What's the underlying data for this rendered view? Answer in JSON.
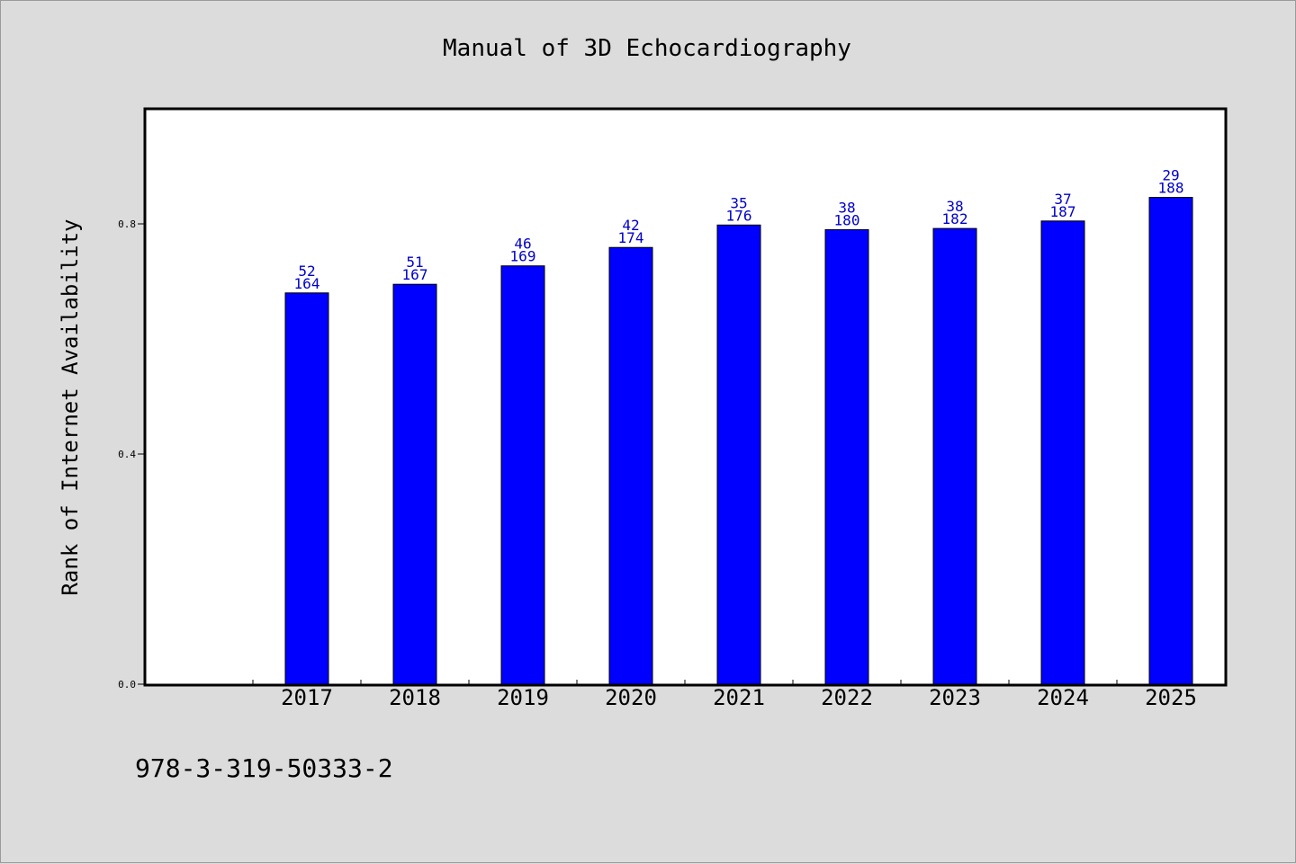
{
  "chart_data": {
    "type": "bar",
    "title": "Manual of 3D Echocardiography",
    "xlabel": "",
    "ylabel": "Rank of Internet Availability",
    "footnote": "978-3-319-50333-2",
    "categories": [
      "2017",
      "2018",
      "2019",
      "2020",
      "2021",
      "2022",
      "2023",
      "2024",
      "2025"
    ],
    "values": [
      0.68,
      0.695,
      0.727,
      0.759,
      0.798,
      0.79,
      0.792,
      0.805,
      0.846
    ],
    "labels_top": [
      "52",
      "51",
      "46",
      "42",
      "35",
      "38",
      "38",
      "37",
      "29"
    ],
    "labels_bottom": [
      "164",
      "167",
      "169",
      "174",
      "176",
      "180",
      "182",
      "187",
      "188"
    ],
    "ylim": [
      0,
      1.0
    ],
    "y_ticks": [
      0.0,
      0.4,
      0.8
    ],
    "y_tick_labels": [
      "0.0",
      "0.4",
      "0.8"
    ],
    "grid": false,
    "colors": {
      "background": "#dcdcdc",
      "plot_background": "#ffffff",
      "bar": "#0000ff",
      "data_label": "#0000cc",
      "axis": "#000000"
    }
  }
}
